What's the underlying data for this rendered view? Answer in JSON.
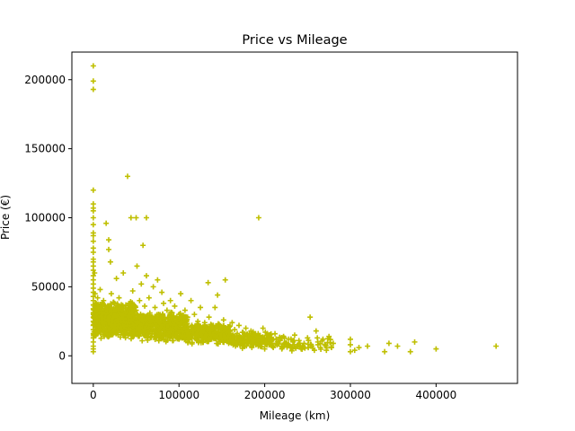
{
  "chart_data": {
    "type": "scatter",
    "title": "Price vs Mileage",
    "xlabel": "Mileage (km)",
    "ylabel": "Price (€)",
    "xlim": [
      -25000,
      495000
    ],
    "ylim": [
      -20000,
      220000
    ],
    "x_ticks": [
      0,
      100000,
      200000,
      300000,
      400000
    ],
    "x_tick_labels": [
      "0",
      "100000",
      "200000",
      "300000",
      "400000"
    ],
    "y_ticks": [
      0,
      50000,
      100000,
      150000,
      200000
    ],
    "y_tick_labels": [
      "0",
      "50000",
      "100000",
      "150000",
      "200000"
    ],
    "grid": false,
    "marker": "+",
    "color": "#bfbf00",
    "points": [
      [
        0,
        210000
      ],
      [
        0,
        199000
      ],
      [
        0,
        193000
      ],
      [
        0,
        120000
      ],
      [
        0,
        110000
      ],
      [
        0,
        107000
      ],
      [
        0,
        105000
      ],
      [
        0,
        100000
      ],
      [
        0,
        95000
      ],
      [
        0,
        89000
      ],
      [
        0,
        87000
      ],
      [
        0,
        83000
      ],
      [
        0,
        78000
      ],
      [
        0,
        75000
      ],
      [
        0,
        70000
      ],
      [
        0,
        68000
      ],
      [
        0,
        65000
      ],
      [
        0,
        62000
      ],
      [
        0,
        58000
      ],
      [
        0,
        55000
      ],
      [
        0,
        52000
      ],
      [
        0,
        49000
      ],
      [
        0,
        46000
      ],
      [
        0,
        43000
      ],
      [
        0,
        40000
      ],
      [
        0,
        37000
      ],
      [
        0,
        34000
      ],
      [
        0,
        31000
      ],
      [
        0,
        28000
      ],
      [
        0,
        25000
      ],
      [
        0,
        22000
      ],
      [
        0,
        19000
      ],
      [
        0,
        16000
      ],
      [
        0,
        13000
      ],
      [
        0,
        10000
      ],
      [
        0,
        7000
      ],
      [
        0,
        5000
      ],
      [
        0,
        3000
      ],
      [
        1500,
        60000
      ],
      [
        2000,
        45000
      ],
      [
        3000,
        38000
      ],
      [
        4000,
        30000
      ],
      [
        5000,
        42000
      ],
      [
        5000,
        26000
      ],
      [
        6000,
        35000
      ],
      [
        7000,
        22000
      ],
      [
        8000,
        48000
      ],
      [
        8000,
        19000
      ],
      [
        10000,
        33000
      ],
      [
        11000,
        27000
      ],
      [
        12000,
        40000
      ],
      [
        13000,
        24000
      ],
      [
        15000,
        96000
      ],
      [
        15000,
        30000
      ],
      [
        16000,
        21000
      ],
      [
        17000,
        36000
      ],
      [
        18000,
        84000
      ],
      [
        18000,
        77000
      ],
      [
        19000,
        28000
      ],
      [
        20000,
        68000
      ],
      [
        20000,
        17000
      ],
      [
        21000,
        45000
      ],
      [
        22000,
        32000
      ],
      [
        23000,
        25000
      ],
      [
        25000,
        38000
      ],
      [
        26000,
        20000
      ],
      [
        27000,
        56000
      ],
      [
        28000,
        29000
      ],
      [
        30000,
        23000
      ],
      [
        30000,
        42000
      ],
      [
        32000,
        35000
      ],
      [
        33000,
        19000
      ],
      [
        35000,
        60000
      ],
      [
        36000,
        27000
      ],
      [
        38000,
        31000
      ],
      [
        40000,
        130000
      ],
      [
        40000,
        22000
      ],
      [
        42000,
        38000
      ],
      [
        44000,
        100000
      ],
      [
        45000,
        26000
      ],
      [
        46000,
        47000
      ],
      [
        48000,
        18000
      ],
      [
        50000,
        100000
      ],
      [
        50000,
        33000
      ],
      [
        51000,
        65000
      ],
      [
        52000,
        24000
      ],
      [
        54000,
        40000
      ],
      [
        55000,
        20000
      ],
      [
        56000,
        52000
      ],
      [
        58000,
        80000
      ],
      [
        58000,
        29000
      ],
      [
        60000,
        36000
      ],
      [
        60000,
        17000
      ],
      [
        62000,
        100000
      ],
      [
        62000,
        58000
      ],
      [
        63000,
        23000
      ],
      [
        65000,
        42000
      ],
      [
        66000,
        31000
      ],
      [
        68000,
        19000
      ],
      [
        70000,
        50000
      ],
      [
        70000,
        27000
      ],
      [
        72000,
        35000
      ],
      [
        74000,
        22000
      ],
      [
        75000,
        55000
      ],
      [
        76000,
        30000
      ],
      [
        78000,
        16000
      ],
      [
        80000,
        46000
      ],
      [
        80000,
        25000
      ],
      [
        82000,
        38000
      ],
      [
        84000,
        20000
      ],
      [
        86000,
        33000
      ],
      [
        88000,
        14000
      ],
      [
        90000,
        40000
      ],
      [
        90000,
        23000
      ],
      [
        92000,
        28000
      ],
      [
        94000,
        18000
      ],
      [
        95000,
        36000
      ],
      [
        97000,
        21000
      ],
      [
        100000,
        30000
      ],
      [
        100000,
        12000
      ],
      [
        102000,
        45000
      ],
      [
        104000,
        25000
      ],
      [
        105000,
        17000
      ],
      [
        107000,
        33000
      ],
      [
        108000,
        20000
      ],
      [
        110000,
        28000
      ],
      [
        112000,
        14000
      ],
      [
        114000,
        40000
      ],
      [
        115000,
        22000
      ],
      [
        117000,
        18000
      ],
      [
        118000,
        30000
      ],
      [
        120000,
        12000
      ],
      [
        122000,
        25000
      ],
      [
        124000,
        16000
      ],
      [
        125000,
        35000
      ],
      [
        127000,
        20000
      ],
      [
        128000,
        10000
      ],
      [
        130000,
        24000
      ],
      [
        132000,
        15000
      ],
      [
        134000,
        53000
      ],
      [
        135000,
        28000
      ],
      [
        137000,
        18000
      ],
      [
        138000,
        12000
      ],
      [
        140000,
        22000
      ],
      [
        142000,
        35000
      ],
      [
        143000,
        14000
      ],
      [
        145000,
        44000
      ],
      [
        146000,
        20000
      ],
      [
        148000,
        10000
      ],
      [
        150000,
        17000
      ],
      [
        152000,
        26000
      ],
      [
        154000,
        55000
      ],
      [
        155000,
        13000
      ],
      [
        157000,
        21000
      ],
      [
        158000,
        9000
      ],
      [
        160000,
        16000
      ],
      [
        162000,
        24000
      ],
      [
        164000,
        11000
      ],
      [
        165000,
        19000
      ],
      [
        167000,
        14000
      ],
      [
        168000,
        8000
      ],
      [
        170000,
        22000
      ],
      [
        172000,
        12000
      ],
      [
        174000,
        17000
      ],
      [
        175000,
        7000
      ],
      [
        177000,
        15000
      ],
      [
        178000,
        20000
      ],
      [
        180000,
        10000
      ],
      [
        182000,
        13000
      ],
      [
        184000,
        18000
      ],
      [
        185000,
        6000
      ],
      [
        187000,
        11000
      ],
      [
        188000,
        16000
      ],
      [
        190000,
        9000
      ],
      [
        192000,
        14000
      ],
      [
        193000,
        100000
      ],
      [
        195000,
        7000
      ],
      [
        197000,
        12000
      ],
      [
        198000,
        20000
      ],
      [
        200000,
        5000
      ],
      [
        202000,
        10000
      ],
      [
        204000,
        15000
      ],
      [
        205000,
        8000
      ],
      [
        208000,
        12000
      ],
      [
        210000,
        6000
      ],
      [
        212000,
        16000
      ],
      [
        215000,
        9000
      ],
      [
        218000,
        11000
      ],
      [
        220000,
        5000
      ],
      [
        222000,
        14000
      ],
      [
        225000,
        8000
      ],
      [
        228000,
        12000
      ],
      [
        230000,
        6000
      ],
      [
        233000,
        10000
      ],
      [
        235000,
        15000
      ],
      [
        238000,
        7000
      ],
      [
        240000,
        11000
      ],
      [
        243000,
        5000
      ],
      [
        246000,
        9000
      ],
      [
        250000,
        13000
      ],
      [
        253000,
        28000
      ],
      [
        255000,
        7000
      ],
      [
        258000,
        4000
      ],
      [
        260000,
        18000
      ],
      [
        262000,
        10000
      ],
      [
        265000,
        6000
      ],
      [
        268000,
        12000
      ],
      [
        270000,
        8000
      ],
      [
        272000,
        4000
      ],
      [
        275000,
        14000
      ],
      [
        278000,
        6000
      ],
      [
        280000,
        9000
      ],
      [
        300000,
        12000
      ],
      [
        300000,
        8000
      ],
      [
        300000,
        3000
      ],
      [
        305000,
        4000
      ],
      [
        310000,
        6000
      ],
      [
        320000,
        7000
      ],
      [
        340000,
        3000
      ],
      [
        345000,
        9000
      ],
      [
        355000,
        7000
      ],
      [
        370000,
        3000
      ],
      [
        375000,
        10000
      ],
      [
        400000,
        5000
      ],
      [
        470000,
        7000
      ]
    ],
    "dense_clusters": [
      {
        "x_range": [
          0,
          50000
        ],
        "y_range": [
          12000,
          40000
        ],
        "count": 700,
        "seed": 11
      },
      {
        "x_range": [
          50000,
          110000
        ],
        "y_range": [
          10000,
          32000
        ],
        "count": 550,
        "seed": 23
      },
      {
        "x_range": [
          110000,
          160000
        ],
        "y_range": [
          8000,
          24000
        ],
        "count": 320,
        "seed": 37
      },
      {
        "x_range": [
          160000,
          210000
        ],
        "y_range": [
          5000,
          18000
        ],
        "count": 180,
        "seed": 41
      },
      {
        "x_range": [
          210000,
          280000
        ],
        "y_range": [
          3000,
          14000
        ],
        "count": 60,
        "seed": 53
      }
    ]
  }
}
